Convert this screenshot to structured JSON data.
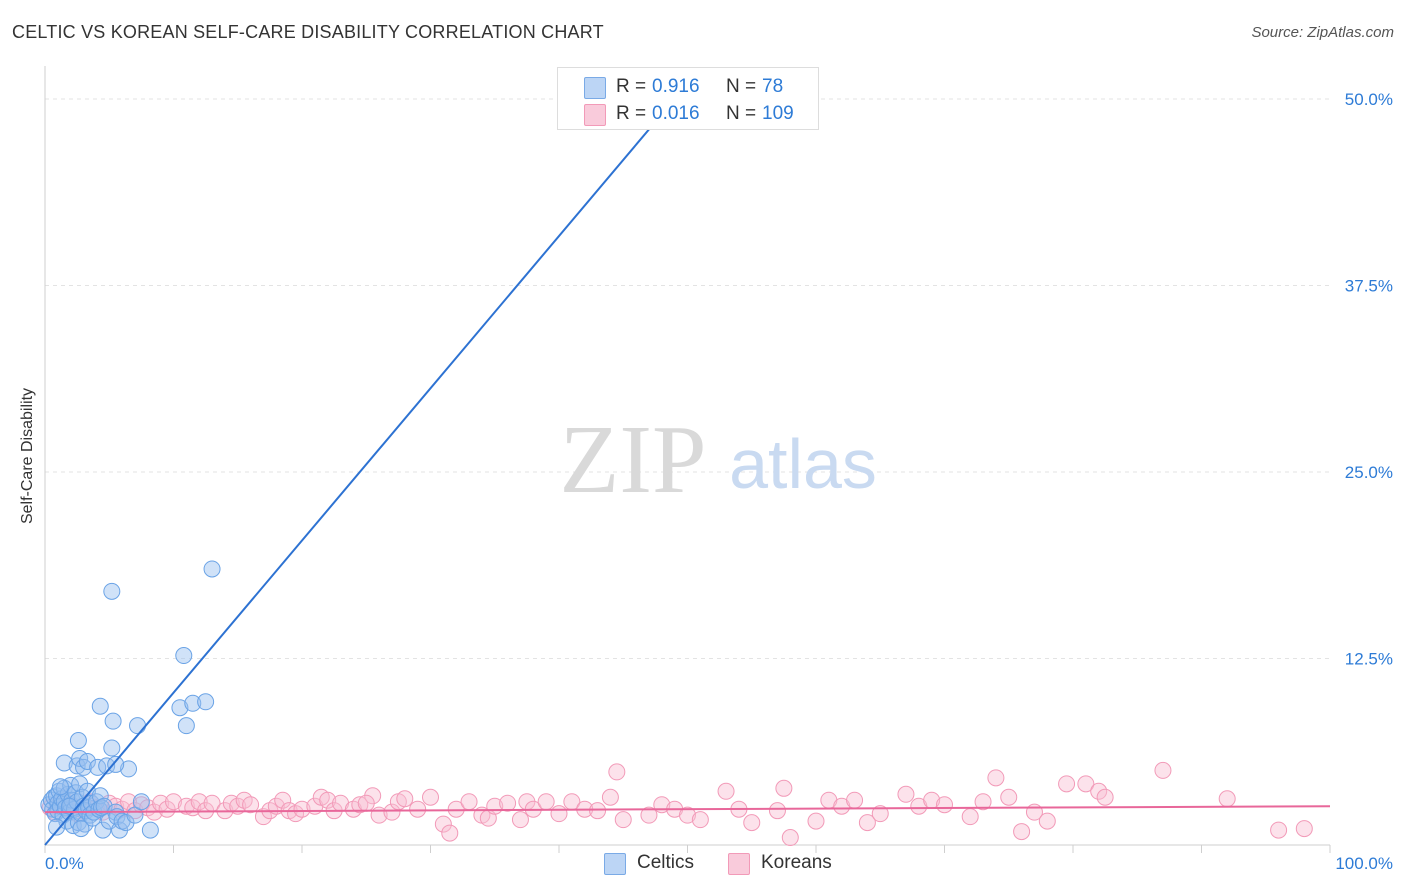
{
  "title": "CELTIC VS KOREAN SELF-CARE DISABILITY CORRELATION CHART",
  "source": "Source: ZipAtlas.com",
  "watermark": {
    "zip": "ZIP",
    "atlas": "atlas"
  },
  "legend": {
    "rows": [
      {
        "r_label": "R =",
        "r_value": "0.916",
        "n_label": "N =",
        "n_value": "78"
      },
      {
        "r_label": "R =",
        "r_value": "0.016",
        "n_label": "N =",
        "n_value": "109"
      }
    ]
  },
  "bottom_legend": [
    "Celtics",
    "Koreans"
  ],
  "chart_data": {
    "type": "scatter",
    "title": "CELTIC VS KOREAN SELF-CARE DISABILITY CORRELATION CHART",
    "ylabel": "Self-Care Disability",
    "xlabel": "",
    "xlim": [
      0,
      100
    ],
    "ylim": [
      0,
      50
    ],
    "x_tick_labels": [
      "0.0%",
      "100.0%"
    ],
    "y_ticks": [
      12.5,
      25.0,
      37.5,
      50.0
    ],
    "y_tick_labels": [
      "12.5%",
      "25.0%",
      "37.5%",
      "50.0%"
    ],
    "grid": true,
    "legend_position": "top-center",
    "colors": {
      "Celtics": "#6aa3e6",
      "Koreans": "#f29ab8",
      "celtics_line": "#2d72d2",
      "koreans_line": "#e8679a",
      "tick_label": "#2d7bd6"
    },
    "series": [
      {
        "name": "Celtics",
        "r": 0.916,
        "n": 78,
        "trend": {
          "x": [
            0,
            49.0
          ],
          "y": [
            0,
            50.0
          ]
        },
        "points": [
          [
            0.3,
            2.7
          ],
          [
            0.5,
            3.0
          ],
          [
            0.6,
            2.4
          ],
          [
            0.7,
            3.2
          ],
          [
            0.8,
            2.1
          ],
          [
            0.9,
            3.3
          ],
          [
            1.0,
            2.8
          ],
          [
            1.0,
            2.3
          ],
          [
            1.1,
            3.6
          ],
          [
            1.2,
            2.6
          ],
          [
            1.3,
            3.1
          ],
          [
            1.4,
            2.0
          ],
          [
            1.5,
            2.9
          ],
          [
            1.5,
            3.8
          ],
          [
            1.6,
            2.5
          ],
          [
            1.7,
            1.6
          ],
          [
            1.8,
            3.4
          ],
          [
            1.9,
            2.2
          ],
          [
            2.0,
            4.0
          ],
          [
            2.0,
            2.7
          ],
          [
            2.1,
            3.0
          ],
          [
            2.2,
            1.3
          ],
          [
            2.3,
            2.4
          ],
          [
            2.4,
            3.5
          ],
          [
            2.5,
            2.9
          ],
          [
            2.6,
            1.5
          ],
          [
            2.7,
            4.1
          ],
          [
            2.8,
            2.1
          ],
          [
            2.9,
            3.2
          ],
          [
            3.0,
            2.6
          ],
          [
            3.1,
            1.4
          ],
          [
            3.2,
            2.3
          ],
          [
            3.3,
            3.6
          ],
          [
            3.4,
            2.5
          ],
          [
            3.5,
            2.0
          ],
          [
            3.6,
            2.8
          ],
          [
            3.7,
            1.8
          ],
          [
            3.8,
            2.2
          ],
          [
            4.0,
            2.9
          ],
          [
            4.2,
            2.4
          ],
          [
            4.3,
            3.3
          ],
          [
            1.5,
            5.5
          ],
          [
            2.5,
            5.3
          ],
          [
            2.6,
            7.0
          ],
          [
            2.7,
            5.8
          ],
          [
            3.0,
            5.2
          ],
          [
            3.3,
            5.6
          ],
          [
            4.1,
            5.2
          ],
          [
            4.4,
            2.5
          ],
          [
            4.5,
            1.0
          ],
          [
            4.6,
            2.6
          ],
          [
            4.8,
            5.3
          ],
          [
            5.0,
            1.6
          ],
          [
            5.2,
            6.5
          ],
          [
            5.3,
            8.3
          ],
          [
            5.5,
            2.2
          ],
          [
            5.6,
            1.9
          ],
          [
            5.8,
            1.0
          ],
          [
            6.0,
            1.6
          ],
          [
            6.3,
            1.5
          ],
          [
            6.5,
            5.1
          ],
          [
            7.0,
            2.0
          ],
          [
            7.2,
            8.0
          ],
          [
            7.5,
            2.9
          ],
          [
            8.2,
            1.0
          ],
          [
            1.9,
            2.6
          ],
          [
            4.3,
            9.3
          ],
          [
            5.5,
            5.4
          ],
          [
            2.8,
            1.1
          ],
          [
            5.2,
            17.0
          ],
          [
            10.5,
            9.2
          ],
          [
            10.8,
            12.7
          ],
          [
            11.0,
            8.0
          ],
          [
            11.5,
            9.5
          ],
          [
            12.5,
            9.6
          ],
          [
            13.0,
            18.5
          ],
          [
            0.9,
            1.2
          ],
          [
            1.2,
            3.9
          ]
        ]
      },
      {
        "name": "Koreans",
        "r": 0.016,
        "n": 109,
        "trend": {
          "x": [
            0,
            100
          ],
          "y": [
            2.2,
            2.6
          ]
        },
        "points": [
          [
            0.4,
            2.5
          ],
          [
            0.8,
            2.2
          ],
          [
            1.2,
            2.8
          ],
          [
            1.5,
            3.0
          ],
          [
            1.8,
            2.4
          ],
          [
            2.2,
            2.6
          ],
          [
            2.5,
            2.1
          ],
          [
            3.0,
            2.3
          ],
          [
            3.5,
            2.9
          ],
          [
            4.0,
            2.5
          ],
          [
            4.5,
            2.2
          ],
          [
            5.0,
            2.8
          ],
          [
            5.5,
            2.6
          ],
          [
            6.0,
            2.4
          ],
          [
            6.5,
            2.9
          ],
          [
            7.0,
            2.3
          ],
          [
            7.5,
            2.7
          ],
          [
            8.0,
            2.5
          ],
          [
            8.5,
            2.2
          ],
          [
            9.0,
            2.8
          ],
          [
            9.5,
            2.4
          ],
          [
            10.0,
            2.9
          ],
          [
            11.0,
            2.6
          ],
          [
            11.5,
            2.5
          ],
          [
            12.0,
            2.9
          ],
          [
            12.5,
            2.3
          ],
          [
            13.0,
            2.8
          ],
          [
            14.0,
            2.3
          ],
          [
            14.5,
            2.8
          ],
          [
            15.0,
            2.6
          ],
          [
            15.5,
            3.0
          ],
          [
            16.0,
            2.7
          ],
          [
            17.0,
            1.9
          ],
          [
            17.5,
            2.3
          ],
          [
            18.0,
            2.6
          ],
          [
            18.5,
            3.0
          ],
          [
            19.0,
            2.3
          ],
          [
            19.5,
            2.1
          ],
          [
            20.0,
            2.4
          ],
          [
            21.0,
            2.6
          ],
          [
            21.5,
            3.2
          ],
          [
            22.0,
            3.0
          ],
          [
            22.5,
            2.3
          ],
          [
            23.0,
            2.8
          ],
          [
            24.0,
            2.4
          ],
          [
            24.5,
            2.7
          ],
          [
            25.5,
            3.3
          ],
          [
            25.0,
            2.8
          ],
          [
            26.0,
            2.0
          ],
          [
            27.0,
            2.2
          ],
          [
            27.5,
            2.9
          ],
          [
            28.0,
            3.1
          ],
          [
            29.0,
            2.4
          ],
          [
            30.0,
            3.2
          ],
          [
            31.0,
            1.4
          ],
          [
            31.5,
            0.8
          ],
          [
            32.0,
            2.4
          ],
          [
            33.0,
            2.9
          ],
          [
            34.0,
            2.0
          ],
          [
            34.5,
            1.8
          ],
          [
            35.0,
            2.6
          ],
          [
            36.0,
            2.8
          ],
          [
            37.0,
            1.7
          ],
          [
            37.5,
            2.9
          ],
          [
            38.0,
            2.4
          ],
          [
            39.0,
            2.9
          ],
          [
            40.0,
            2.1
          ],
          [
            41.0,
            2.9
          ],
          [
            42.0,
            2.4
          ],
          [
            43.0,
            2.3
          ],
          [
            44.0,
            3.2
          ],
          [
            44.5,
            4.9
          ],
          [
            45.0,
            1.7
          ],
          [
            47.0,
            2.0
          ],
          [
            48.0,
            2.7
          ],
          [
            49.0,
            2.4
          ],
          [
            50.0,
            2.0
          ],
          [
            51.0,
            1.7
          ],
          [
            53.0,
            3.6
          ],
          [
            54.0,
            2.4
          ],
          [
            55.0,
            1.5
          ],
          [
            57.0,
            2.3
          ],
          [
            57.5,
            3.8
          ],
          [
            58.0,
            0.5
          ],
          [
            60.0,
            1.6
          ],
          [
            61.0,
            3.0
          ],
          [
            62.0,
            2.6
          ],
          [
            63.0,
            3.0
          ],
          [
            64.0,
            1.5
          ],
          [
            65.0,
            2.1
          ],
          [
            67.0,
            3.4
          ],
          [
            68.0,
            2.6
          ],
          [
            69.0,
            3.0
          ],
          [
            70.0,
            2.7
          ],
          [
            72.0,
            1.9
          ],
          [
            73.0,
            2.9
          ],
          [
            74.0,
            4.5
          ],
          [
            75.0,
            3.2
          ],
          [
            76.0,
            0.9
          ],
          [
            77.0,
            2.2
          ],
          [
            78.0,
            1.6
          ],
          [
            79.5,
            4.1
          ],
          [
            81.0,
            4.1
          ],
          [
            82.0,
            3.6
          ],
          [
            82.5,
            3.2
          ],
          [
            87.0,
            5.0
          ],
          [
            96.0,
            1.0
          ],
          [
            98.0,
            1.1
          ],
          [
            92.0,
            3.1
          ]
        ]
      }
    ]
  }
}
